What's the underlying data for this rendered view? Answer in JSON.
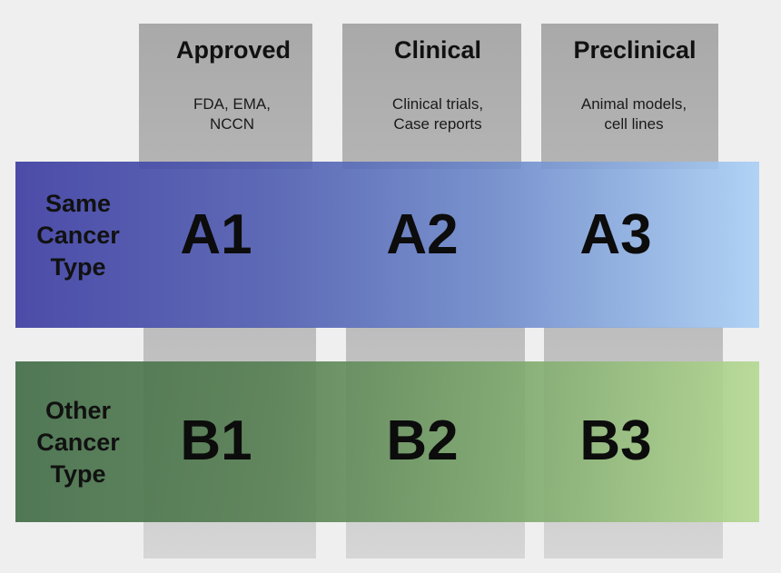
{
  "columns": [
    {
      "title": "Approved",
      "subtitle": "FDA, EMA,\nNCCN"
    },
    {
      "title": "Clinical",
      "subtitle": "Clinical trials,\nCase reports"
    },
    {
      "title": "Preclinical",
      "subtitle": "Animal models,\ncell lines"
    }
  ],
  "rows": [
    {
      "label": "Same\nCancer\nType",
      "cells": [
        "A1",
        "A2",
        "A3"
      ],
      "color": "#3a3aa0"
    },
    {
      "label": "Other\nCancer\nType",
      "cells": [
        "B1",
        "B2",
        "B3"
      ],
      "color": "#3f6a44"
    }
  ]
}
